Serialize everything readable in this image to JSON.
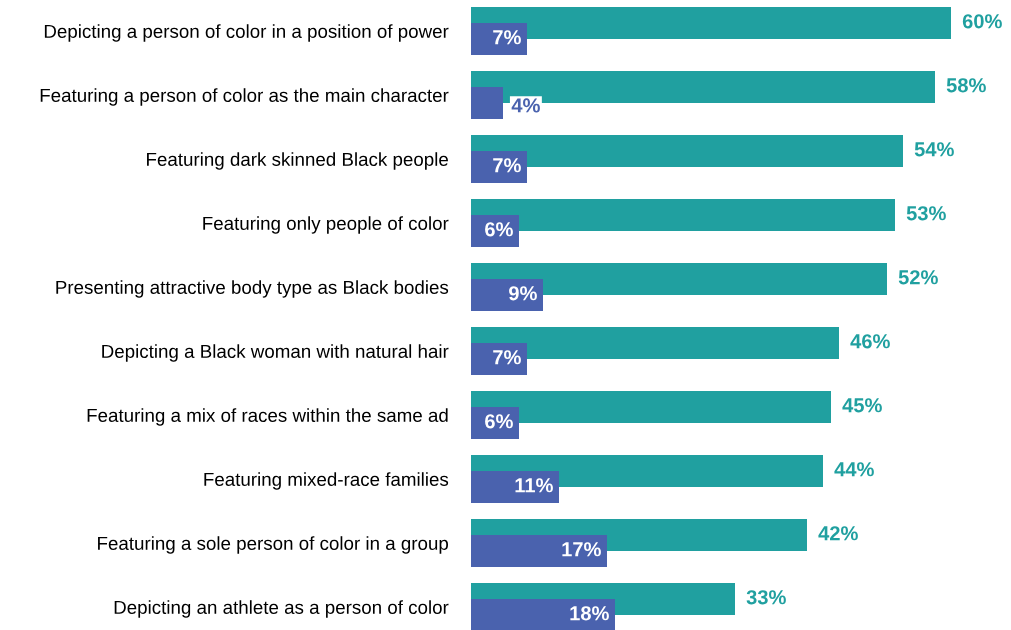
{
  "chart_data": {
    "type": "bar",
    "orientation": "horizontal",
    "categories": [
      "Depicting a person of color in a position of power",
      "Featuring a person of color as the main character",
      "Featuring dark skinned Black people",
      "Featuring only people of color",
      "Presenting attractive body type as Black bodies",
      "Depicting a Black woman with natural hair",
      "Featuring a mix of races within the same ad",
      "Featuring mixed-race families",
      "Featuring a sole person of color in a group",
      "Depicting an athlete as a person of color"
    ],
    "series": [
      {
        "color": "#20a0a0",
        "values": [
          60,
          58,
          54,
          53,
          52,
          46,
          45,
          44,
          42,
          33
        ],
        "value_labels": [
          "60%",
          "58%",
          "54%",
          "53%",
          "52%",
          "46%",
          "45%",
          "44%",
          "42%",
          "33%"
        ]
      },
      {
        "color": "#4a62ae",
        "values": [
          7,
          4,
          7,
          6,
          9,
          7,
          6,
          11,
          17,
          18
        ],
        "value_labels": [
          "7%",
          "4%",
          "7%",
          "6%",
          "9%",
          "7%",
          "6%",
          "11%",
          "17%",
          "18%"
        ]
      }
    ],
    "tick_labels": "y",
    "grid": false,
    "legend": false
  }
}
